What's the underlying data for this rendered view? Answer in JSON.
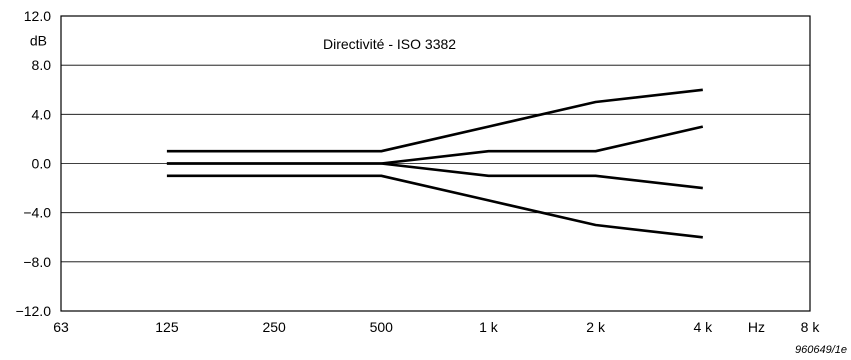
{
  "chart_data": {
    "type": "line",
    "title": "Directivité - ISO 3382",
    "ylabel": "dB",
    "xlabel": "Hz",
    "figure_code": "960649/1e",
    "x": [
      125,
      250,
      500,
      1000,
      2000,
      4000
    ],
    "x_axis": {
      "scale": "log2",
      "range": [
        63,
        8000
      ],
      "ticks": [
        63,
        125,
        250,
        500,
        1000,
        2000,
        4000,
        8000
      ],
      "tick_labels": [
        "63",
        "125",
        "250",
        "500",
        "1 k",
        "2 k",
        "4 k",
        "8 k"
      ]
    },
    "y_axis": {
      "range": [
        -12,
        12
      ],
      "ticks": [
        -12,
        -8,
        -4,
        0,
        4,
        8,
        12
      ],
      "tick_labels": [
        "−12.0",
        "−8.0",
        "−4.0",
        "0.0",
        "4.0",
        "8.0",
        "12.0"
      ]
    },
    "grid": true,
    "series": [
      {
        "values": [
          1,
          1,
          1,
          3,
          5,
          6
        ]
      },
      {
        "values": [
          0,
          0,
          0,
          1,
          1,
          3
        ]
      },
      {
        "values": [
          0,
          0,
          0,
          -1,
          -1,
          -2
        ]
      },
      {
        "values": [
          -1,
          -1,
          -1,
          -3,
          -5,
          -6
        ]
      }
    ]
  }
}
